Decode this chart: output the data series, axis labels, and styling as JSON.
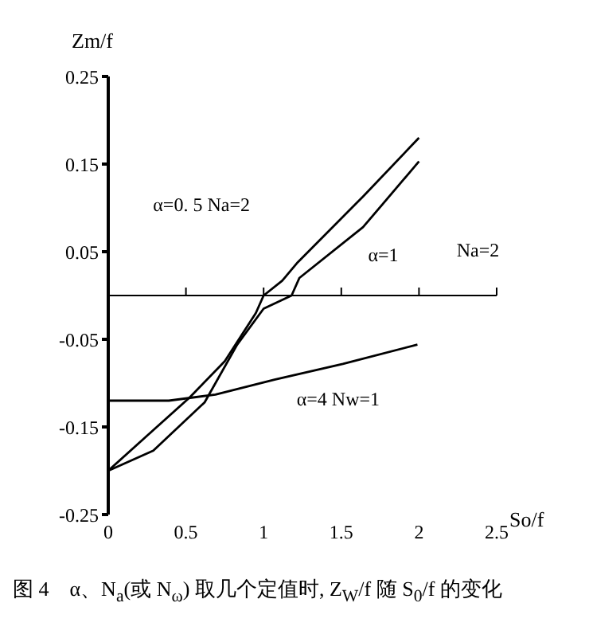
{
  "chart_data": {
    "type": "line",
    "xlabel": "So/f",
    "ylabel": "Zm/f",
    "xlim": [
      0,
      2.5
    ],
    "xticks": [
      0,
      0.5,
      1,
      1.5,
      2,
      2.5
    ],
    "ylim": [
      -0.25,
      0.25
    ],
    "yticks": [
      -0.25,
      -0.15,
      -0.05,
      0.05,
      0.15,
      0.25
    ],
    "marker": "none",
    "line_style": "solid",
    "series": [
      {
        "color": "#000000",
        "x": [
          0,
          0.25,
          0.52,
          0.75,
          0.95,
          1.0,
          1.12,
          1.22,
          1.64,
          2.0
        ],
        "values": [
          -0.2,
          -0.16,
          -0.117,
          -0.075,
          -0.02,
          0,
          0.017,
          0.038,
          0.113,
          0.18
        ]
      },
      {
        "color": "#000000",
        "x": [
          0,
          0.29,
          0.62,
          0.83,
          1.0,
          1.18,
          1.23,
          1.64,
          2.0
        ],
        "values": [
          -0.2,
          -0.177,
          -0.122,
          -0.056,
          -0.015,
          0,
          0.02,
          0.078,
          0.153
        ]
      },
      {
        "color": "#000000",
        "x": [
          0,
          0.39,
          0.69,
          1.07,
          1.51,
          1.99
        ],
        "values": [
          -0.12,
          -0.12,
          -0.113,
          -0.096,
          -0.078,
          -0.056
        ]
      }
    ],
    "annotations": [
      "α=0. 5   Na=2",
      "α=1",
      "Na=2",
      "α=4   Nw=1",
      "图 4　α、N$_{a}$(或 N$_{ω}$) 取几个定值时, Z$_{W}$/f 随 S$_{0}$/f 的变化"
    ]
  }
}
